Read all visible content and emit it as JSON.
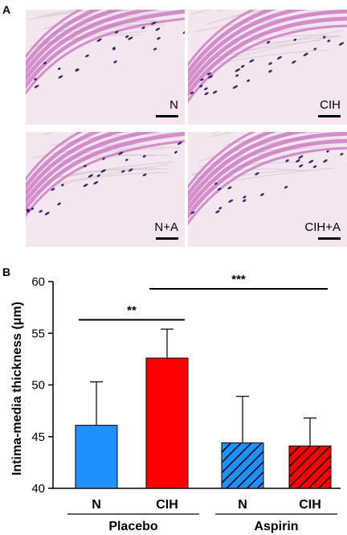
{
  "panelA": {
    "letter": "A",
    "images": [
      {
        "label": "N"
      },
      {
        "label": "CIH"
      },
      {
        "label": "N+A"
      },
      {
        "label": "CIH+A"
      }
    ]
  },
  "panelB": {
    "letter": "B"
  },
  "colors": {
    "blue": "#1e90ff",
    "red": "#ff0000",
    "tissue": "#c96fbf",
    "nuclei": "#3b2570"
  },
  "chart_data": {
    "type": "bar",
    "title": "",
    "ylabel": "Intima-media thickness (μm)",
    "ylim": [
      40,
      60
    ],
    "yticks": [
      40,
      45,
      50,
      55,
      60
    ],
    "grid": false,
    "groups": [
      {
        "label": "Placebo",
        "bars": [
          "N",
          "CIH"
        ]
      },
      {
        "label": "Aspirin",
        "bars": [
          "N",
          "CIH"
        ]
      }
    ],
    "bars": [
      {
        "label": "N",
        "group": "Placebo",
        "value": 46.1,
        "error": 4.2,
        "color": "#1e90ff",
        "hatched": false
      },
      {
        "label": "CIH",
        "group": "Placebo",
        "value": 52.6,
        "error": 2.8,
        "color": "#ff0000",
        "hatched": false
      },
      {
        "label": "N",
        "group": "Aspirin",
        "value": 44.4,
        "error": 4.5,
        "color": "#1e90ff",
        "hatched": true
      },
      {
        "label": "CIH",
        "group": "Aspirin",
        "value": 44.1,
        "error": 2.7,
        "color": "#ff0000",
        "hatched": true
      }
    ],
    "significance": [
      {
        "from": 0,
        "to": 1,
        "label": "**"
      },
      {
        "from": 1,
        "to": 3,
        "label": "***"
      }
    ]
  }
}
